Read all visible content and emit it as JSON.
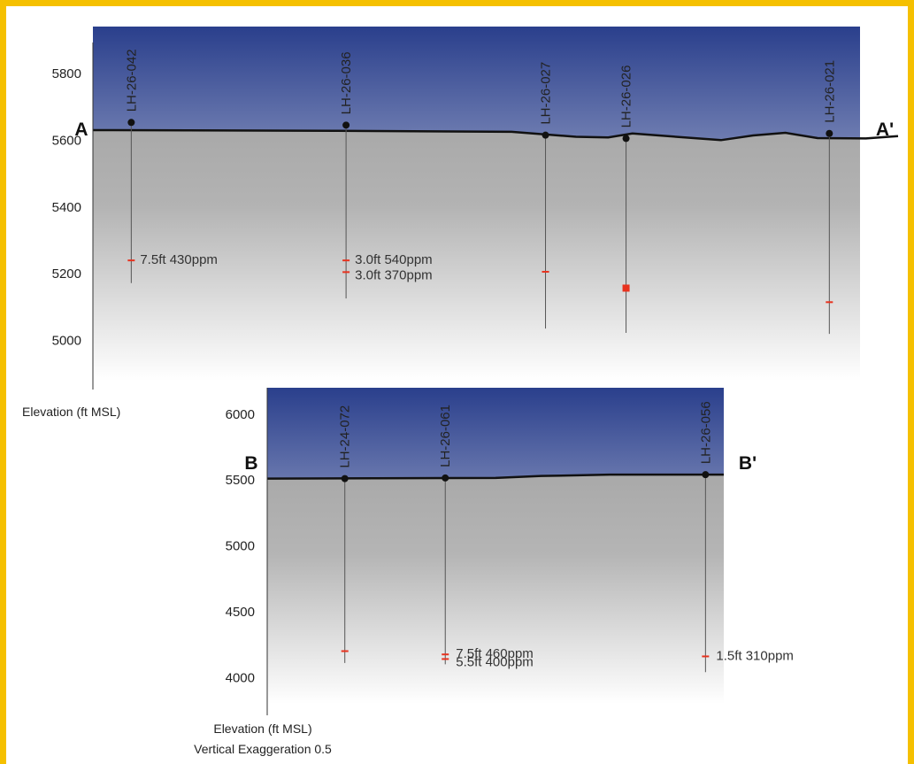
{
  "colors": {
    "frame": "#f5c000",
    "sky_top": "#2a3f8c",
    "ground": "#aaaaaa",
    "assay": "#e8321e",
    "drill": "#444444"
  },
  "chart_data": [
    {
      "type": "cross-section",
      "section_start": "A",
      "section_end": "A'",
      "ylabel": "Elevation (ft MSL)",
      "subtitle": "",
      "ylim": [
        4880,
        5940
      ],
      "yticks": [
        5000,
        5200,
        5400,
        5600,
        5800
      ],
      "surface": [
        [
          0,
          5630
        ],
        [
          0.3,
          5628
        ],
        [
          0.52,
          5625
        ],
        [
          0.6,
          5610
        ],
        [
          0.64,
          5608
        ],
        [
          0.67,
          5620
        ],
        [
          0.78,
          5600
        ],
        [
          0.82,
          5614
        ],
        [
          0.86,
          5622
        ],
        [
          0.9,
          5606
        ],
        [
          0.96,
          5605
        ],
        [
          1.0,
          5612
        ]
      ],
      "holes": [
        {
          "id": "LH-26-042",
          "pos": 0.05,
          "collar": 5653,
          "bottom": 5172,
          "intercepts": [
            {
              "elev": 5240,
              "label": "7.5ft 430ppm"
            }
          ]
        },
        {
          "id": "LH-26-036",
          "pos": 0.33,
          "collar": 5645,
          "bottom": 5126,
          "intercepts": [
            {
              "elev": 5240,
              "label": "3.0ft 540ppm"
            },
            {
              "elev": 5205,
              "label": "3.0ft 370ppm"
            }
          ]
        },
        {
          "id": "LH-26-027",
          "pos": 0.59,
          "collar": 5615,
          "bottom": 5036,
          "intercepts": [
            {
              "elev": 5206,
              "label": ""
            }
          ]
        },
        {
          "id": "LH-26-026",
          "pos": 0.695,
          "collar": 5605,
          "bottom": 5023,
          "intercepts": [
            {
              "elev": 5157,
              "label": ""
            }
          ]
        },
        {
          "id": "LH-26-021",
          "pos": 0.96,
          "collar": 5620,
          "bottom": 5020,
          "intercepts": [
            {
              "elev": 5115,
              "label": ""
            }
          ]
        }
      ]
    },
    {
      "type": "cross-section",
      "section_start": "B",
      "section_end": "B'",
      "ylabel": "Elevation (ft MSL)",
      "subtitle": "Vertical Exaggeration 0.5",
      "ylim": [
        3800,
        6200
      ],
      "yticks": [
        4000,
        4500,
        5000,
        5500,
        6000
      ],
      "surface": [
        [
          0,
          5510
        ],
        [
          0.5,
          5515
        ],
        [
          0.6,
          5530
        ],
        [
          0.75,
          5540
        ],
        [
          1.0,
          5540
        ]
      ],
      "holes": [
        {
          "id": "LH-24-072",
          "pos": 0.17,
          "collar": 5510,
          "bottom": 4110,
          "intercepts": [
            {
              "elev": 4200,
              "label": ""
            }
          ]
        },
        {
          "id": "LH-26-061",
          "pos": 0.39,
          "collar": 5515,
          "bottom": 4100,
          "intercepts": [
            {
              "elev": 4175,
              "label": "7.5ft 460ppm"
            },
            {
              "elev": 4140,
              "label": "5.5ft 400ppm"
            }
          ]
        },
        {
          "id": "LH-26-056",
          "pos": 0.96,
          "collar": 5540,
          "bottom": 4040,
          "intercepts": [
            {
              "elev": 4160,
              "label": "1.5ft 310ppm"
            }
          ]
        }
      ]
    }
  ]
}
